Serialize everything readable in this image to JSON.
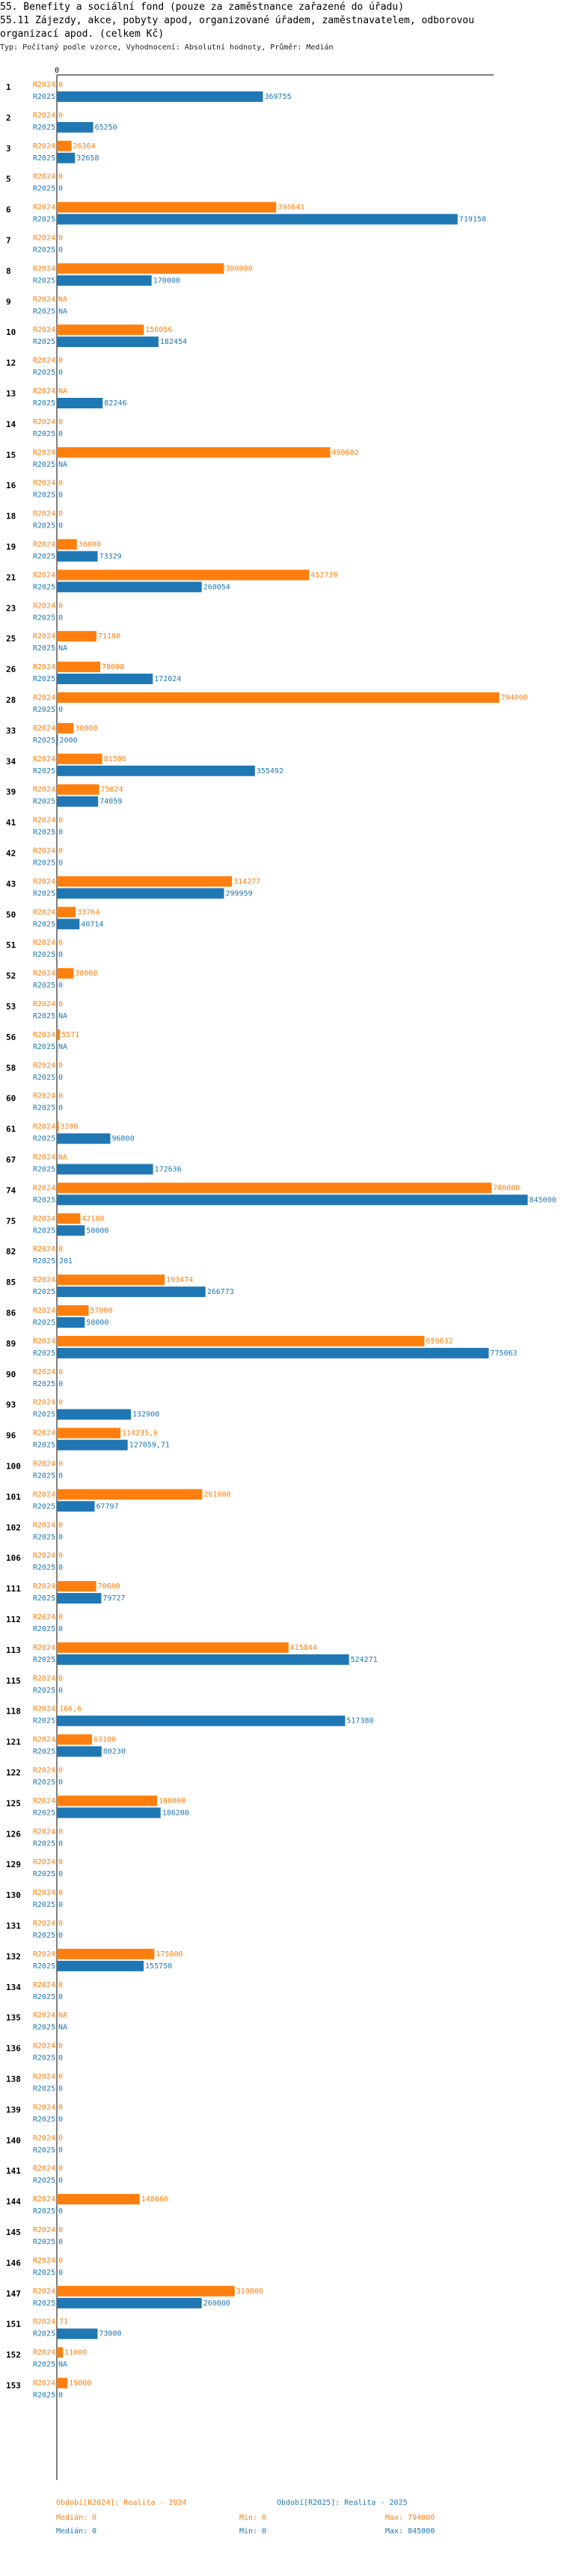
{
  "header": {
    "line1": "55. Benefity a sociální fond (pouze za zaměstnance zařazené do úřadu)",
    "line2": "55.11 Zájezdy, akce, pobyty apod, organizované úřadem, zaměstnavatelem, odborovou",
    "line3": " organizací apod. (celkem Kč)",
    "line4": "Typ: Počítaný podle vzorce, Vyhodnocení: Absolutní hodnoty, Průměr: Medián"
  },
  "colors": {
    "r2024": "#ff7f0e",
    "r2025": "#1f77b4",
    "axis": "#000000",
    "text2024": "#ff7f0e",
    "text2025": "#1f77b4"
  },
  "chart_data": {
    "type": "bar",
    "orientation": "horizontal",
    "axis_zero_label": "0",
    "xlim": [
      0,
      800000
    ],
    "series_names": [
      "R2024",
      "R2025"
    ],
    "rows": [
      {
        "id": "1",
        "r2024": "0",
        "r2025": "369755"
      },
      {
        "id": "2",
        "r2024": "0",
        "r2025": "65250"
      },
      {
        "id": "3",
        "r2024": "26364",
        "r2025": "32658"
      },
      {
        "id": "5",
        "r2024": "0",
        "r2025": "0"
      },
      {
        "id": "6",
        "r2024": "393641",
        "r2025": "719158"
      },
      {
        "id": "7",
        "r2024": "0",
        "r2025": "0"
      },
      {
        "id": "8",
        "r2024": "300000",
        "r2025": "170000"
      },
      {
        "id": "9",
        "r2024": "NA",
        "r2025": "NA"
      },
      {
        "id": "10",
        "r2024": "156056",
        "r2025": "182454"
      },
      {
        "id": "12",
        "r2024": "0",
        "r2025": "0"
      },
      {
        "id": "13",
        "r2024": "NA",
        "r2025": "82246"
      },
      {
        "id": "14",
        "r2024": "0",
        "r2025": "0"
      },
      {
        "id": "15",
        "r2024": "490602",
        "r2025": "NA"
      },
      {
        "id": "16",
        "r2024": "0",
        "r2025": "0"
      },
      {
        "id": "18",
        "r2024": "0",
        "r2025": "0"
      },
      {
        "id": "19",
        "r2024": "36000",
        "r2025": "73329"
      },
      {
        "id": "21",
        "r2024": "452739",
        "r2025": "260054"
      },
      {
        "id": "23",
        "r2024": "0",
        "r2025": "0"
      },
      {
        "id": "25",
        "r2024": "71100",
        "r2025": "NA"
      },
      {
        "id": "26",
        "r2024": "78000",
        "r2025": "172024"
      },
      {
        "id": "28",
        "r2024": "794000",
        "r2025": "0"
      },
      {
        "id": "33",
        "r2024": "30000",
        "r2025": "2000"
      },
      {
        "id": "34",
        "r2024": "81506",
        "r2025": "355492"
      },
      {
        "id": "39",
        "r2024": "75824",
        "r2025": "74059"
      },
      {
        "id": "41",
        "r2024": "0",
        "r2025": "0"
      },
      {
        "id": "42",
        "r2024": "0",
        "r2025": "0"
      },
      {
        "id": "43",
        "r2024": "314277",
        "r2025": "299959"
      },
      {
        "id": "50",
        "r2024": "33764",
        "r2025": "40714"
      },
      {
        "id": "51",
        "r2024": "0",
        "r2025": "0"
      },
      {
        "id": "52",
        "r2024": "30000",
        "r2025": "0"
      },
      {
        "id": "53",
        "r2024": "0",
        "r2025": "NA"
      },
      {
        "id": "56",
        "r2024": "5571",
        "r2025": "NA"
      },
      {
        "id": "58",
        "r2024": "0",
        "r2025": "0"
      },
      {
        "id": "60",
        "r2024": "0",
        "r2025": "0"
      },
      {
        "id": "61",
        "r2024": "3200",
        "r2025": "96000"
      },
      {
        "id": "67",
        "r2024": "NA",
        "r2025": "172636"
      },
      {
        "id": "74",
        "r2024": "780000",
        "r2025": "845000"
      },
      {
        "id": "75",
        "r2024": "42180",
        "r2025": "50000"
      },
      {
        "id": "82",
        "r2024": "0",
        "r2025": "201"
      },
      {
        "id": "85",
        "r2024": "193474",
        "r2025": "266773"
      },
      {
        "id": "86",
        "r2024": "57000",
        "r2025": "50000"
      },
      {
        "id": "89",
        "r2024": "659632",
        "r2025": "775063"
      },
      {
        "id": "90",
        "r2024": "0",
        "r2025": "0"
      },
      {
        "id": "93",
        "r2024": "0",
        "r2025": "132900"
      },
      {
        "id": "96",
        "r2024": "114235,6",
        "r2025": "127059,71"
      },
      {
        "id": "100",
        "r2024": "0",
        "r2025": "0"
      },
      {
        "id": "101",
        "r2024": "261000",
        "r2025": "67797"
      },
      {
        "id": "102",
        "r2024": "0",
        "r2025": "0"
      },
      {
        "id": "106",
        "r2024": "0",
        "r2025": "0"
      },
      {
        "id": "111",
        "r2024": "70600",
        "r2025": "79727"
      },
      {
        "id": "112",
        "r2024": "0",
        "r2025": "0"
      },
      {
        "id": "113",
        "r2024": "415844",
        "r2025": "524271"
      },
      {
        "id": "115",
        "r2024": "0",
        "r2025": "0"
      },
      {
        "id": "118",
        "r2024": "166,6",
        "r2025": "517380"
      },
      {
        "id": "121",
        "r2024": "63100",
        "r2025": "80230"
      },
      {
        "id": "122",
        "r2024": "0",
        "r2025": "0"
      },
      {
        "id": "125",
        "r2024": "180000",
        "r2025": "186200"
      },
      {
        "id": "126",
        "r2024": "0",
        "r2025": "0"
      },
      {
        "id": "129",
        "r2024": "0",
        "r2025": "0"
      },
      {
        "id": "130",
        "r2024": "0",
        "r2025": "0"
      },
      {
        "id": "131",
        "r2024": "0",
        "r2025": "0"
      },
      {
        "id": "132",
        "r2024": "175000",
        "r2025": "155750"
      },
      {
        "id": "134",
        "r2024": "0",
        "r2025": "0"
      },
      {
        "id": "135",
        "r2024": "NA",
        "r2025": "NA"
      },
      {
        "id": "136",
        "r2024": "0",
        "r2025": "0"
      },
      {
        "id": "138",
        "r2024": "0",
        "r2025": "0"
      },
      {
        "id": "139",
        "r2024": "0",
        "r2025": "0"
      },
      {
        "id": "140",
        "r2024": "0",
        "r2025": "0"
      },
      {
        "id": "141",
        "r2024": "0",
        "r2025": "0"
      },
      {
        "id": "144",
        "r2024": "148660",
        "r2025": "0"
      },
      {
        "id": "145",
        "r2024": "0",
        "r2025": "0"
      },
      {
        "id": "146",
        "r2024": "0",
        "r2025": "0"
      },
      {
        "id": "147",
        "r2024": "319000",
        "r2025": "260000"
      },
      {
        "id": "151",
        "r2024": "71",
        "r2025": "73000"
      },
      {
        "id": "152",
        "r2024": "11000",
        "r2025": "NA"
      },
      {
        "id": "153",
        "r2024": "19000",
        "r2025": "0"
      }
    ]
  },
  "footer": {
    "legend2024": "Období[R2024]: Realita - 2024",
    "legend2025": "Období[R2025]: Realita - 2025",
    "median2024": "Medián: 0",
    "min2024": "Min: 0",
    "max2024": "Max: 794000",
    "median2025": "Medián: 0",
    "min2025": "Min: 0",
    "max2025": "Max: 845000"
  }
}
